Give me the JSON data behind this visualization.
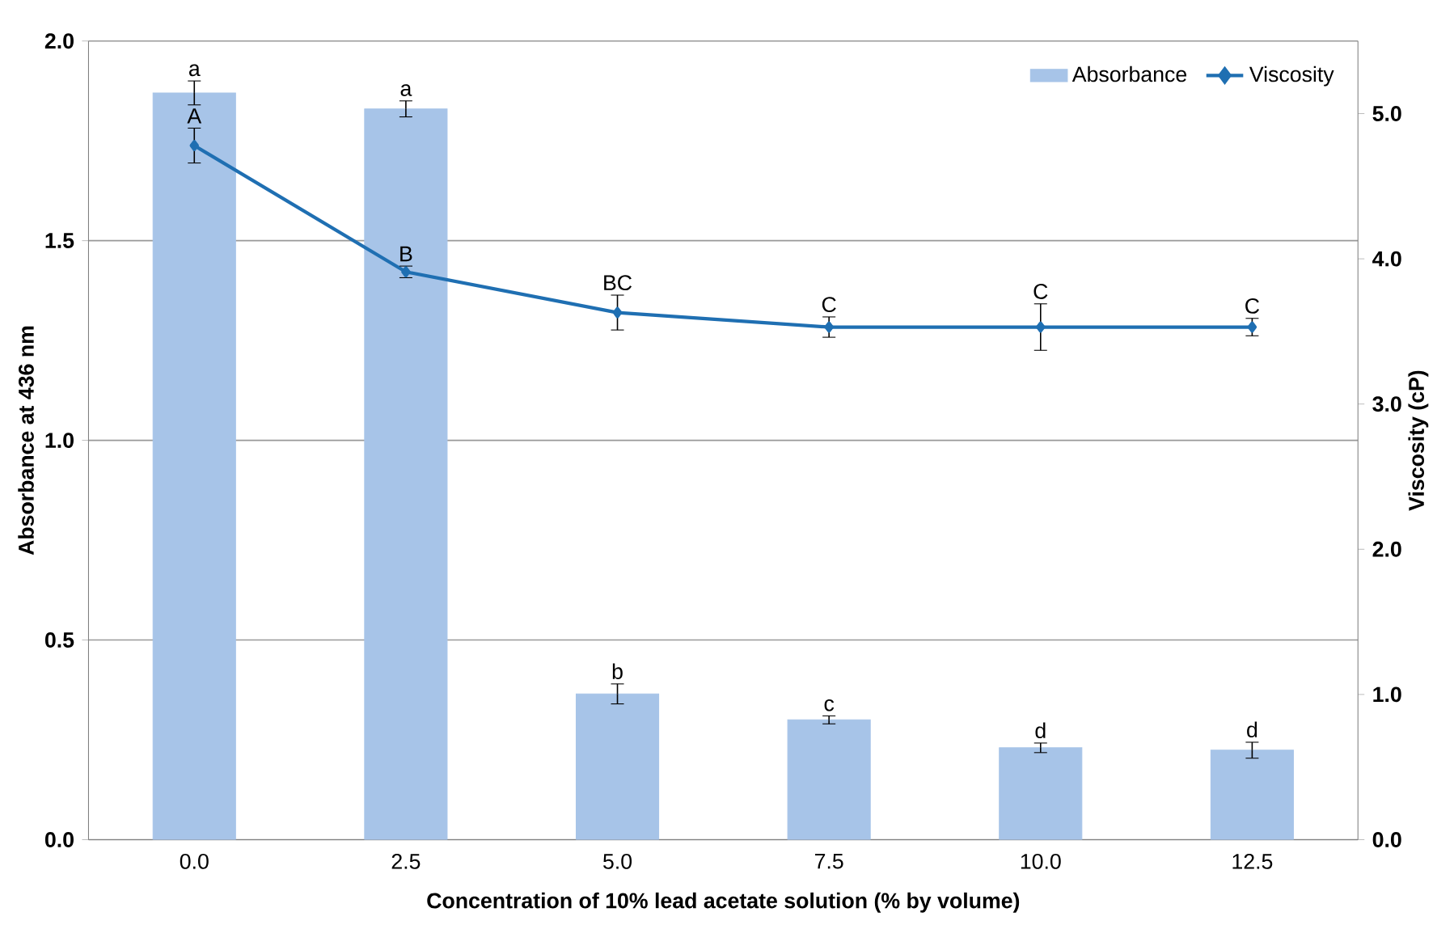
{
  "chart_data": {
    "type": "bar",
    "xlabel": "Concentration of 10% lead acetate solution (% by volume)",
    "ylabel": "Absorbance at 436 nm",
    "y2label": "Viscosity (cP)",
    "categories": [
      "0.0",
      "2.5",
      "5.0",
      "7.5",
      "10.0",
      "12.5"
    ],
    "ylim": [
      0,
      2
    ],
    "yticks": [
      {
        "value": 0,
        "label": "0.0"
      },
      0.5,
      {
        "value": 1,
        "label": "1.0"
      },
      1.5,
      {
        "value": 2,
        "label": "2.0"
      }
    ],
    "y2lim": [
      0,
      5.5
    ],
    "y2ticks": [
      {
        "value": 0,
        "label": "0.0"
      },
      {
        "value": 1,
        "label": "1.0"
      },
      {
        "value": 2,
        "label": "2.0"
      },
      {
        "value": 3,
        "label": "3.0"
      },
      {
        "value": 4,
        "label": "4.0"
      },
      {
        "value": 5,
        "label": "5.0"
      }
    ],
    "grid": "y",
    "legend": "top right",
    "series": [
      {
        "name": "Absorbance",
        "color": "#a7c4e8",
        "values": [
          1.87,
          1.83,
          0.365,
          0.3,
          0.23,
          0.224
        ],
        "errors": [
          0.03,
          0.02,
          0.025,
          0.01,
          0.012,
          0.02
        ],
        "value_labels": [
          "a",
          "a",
          "b",
          "c",
          "d",
          "d"
        ]
      },
      {
        "name": "Viscosity",
        "type": "line",
        "axis": "y2",
        "marker": "diamond",
        "line_style": "solid",
        "color": "#1f6fb2",
        "values": [
          4.78,
          3.91,
          3.63,
          3.53,
          3.53,
          3.53
        ],
        "errors": [
          0.12,
          0.04,
          0.12,
          0.07,
          0.16,
          0.06
        ],
        "value_labels": [
          "A",
          "B",
          "BC",
          "C",
          "C",
          "C"
        ]
      }
    ]
  }
}
